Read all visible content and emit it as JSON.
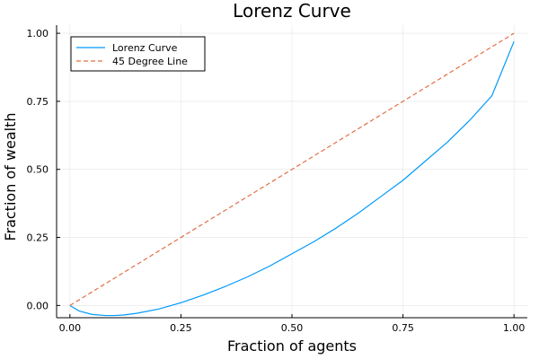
{
  "chart_data": {
    "type": "line",
    "title": "Lorenz Curve",
    "xlabel": "Fraction of agents",
    "ylabel": "Fraction of wealth",
    "xlim": [
      -0.03,
      1.03
    ],
    "ylim": [
      -0.045,
      1.03
    ],
    "xticks": [
      0.0,
      0.25,
      0.5,
      0.75,
      1.0
    ],
    "xtick_labels": [
      "0.00",
      "0.25",
      "0.50",
      "0.75",
      "1.00"
    ],
    "yticks": [
      0.0,
      0.25,
      0.5,
      0.75,
      1.0
    ],
    "ytick_labels": [
      "0.00",
      "0.25",
      "0.50",
      "0.75",
      "1.00"
    ],
    "grid": true,
    "legend_position": "top-left",
    "series": [
      {
        "name": "Lorenz Curve",
        "color": "#009AFA",
        "style": "solid",
        "x": [
          0.0,
          0.02,
          0.05,
          0.08,
          0.1,
          0.12,
          0.15,
          0.2,
          0.25,
          0.3,
          0.35,
          0.4,
          0.45,
          0.5,
          0.55,
          0.6,
          0.65,
          0.7,
          0.75,
          0.8,
          0.85,
          0.9,
          0.95,
          1.0
        ],
        "y": [
          0.0,
          -0.02,
          -0.033,
          -0.037,
          -0.037,
          -0.035,
          -0.029,
          -0.013,
          0.01,
          0.038,
          0.07,
          0.105,
          0.145,
          0.19,
          0.235,
          0.285,
          0.34,
          0.4,
          0.46,
          0.53,
          0.6,
          0.68,
          0.77,
          0.97
        ]
      },
      {
        "name": "45 Degree Line",
        "color": "#E26F46",
        "style": "dashed",
        "x": [
          0.0,
          1.0
        ],
        "y": [
          0.0,
          1.0
        ]
      }
    ]
  }
}
